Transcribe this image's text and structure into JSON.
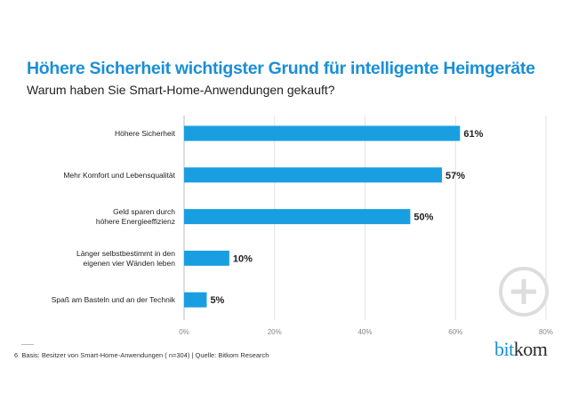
{
  "chart_data": {
    "type": "bar",
    "orientation": "horizontal",
    "title": "Höhere Sicherheit wichtigster Grund für intelligente Heimgeräte",
    "subtitle": "Warum haben Sie Smart-Home-Anwendungen gekauft?",
    "categories": [
      [
        "Höhere Sicherheit"
      ],
      [
        "Mehr Komfort und Lebensqualität"
      ],
      [
        "Geld sparen durch",
        "höhere Energieeffizienz"
      ],
      [
        "Länger selbstbestimmt in den",
        "eigenen vier Wänden leben"
      ],
      [
        "Spaß am Basteln und an der Technik"
      ]
    ],
    "values": [
      61,
      57,
      50,
      10,
      5
    ],
    "data_labels": [
      "61%",
      "57%",
      "50%",
      "10%",
      "5%"
    ],
    "xlim": [
      0,
      80
    ],
    "ticks": [
      0,
      20,
      40,
      60,
      80
    ],
    "tick_labels": [
      "0%",
      "20%",
      "40%",
      "60%",
      "80%"
    ],
    "grid": true,
    "bar_color": "#1a9ee2"
  },
  "footer": {
    "page": "6",
    "note": "Basis: Besitzer von Smart-Home-Anwendungen ( n=304) | Quelle: Bitkom Research"
  },
  "logo": {
    "part1": "bit",
    "part2": "kom"
  },
  "icons": {
    "corner": "plus-circle-icon"
  }
}
